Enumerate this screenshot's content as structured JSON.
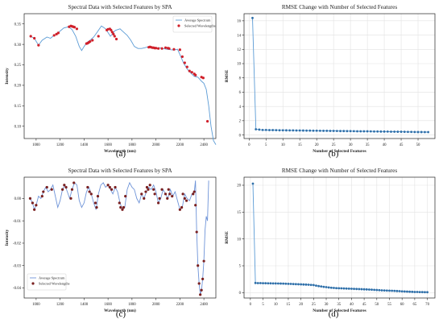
{
  "panels": [
    {
      "label": "(a)",
      "chart_data": {
        "type": "line",
        "title": "Spectral Data with Selected Features by SPA",
        "xlabel": "Wavelength (nm)",
        "ylabel": "Intensity",
        "xticks": [
          1000,
          1200,
          1400,
          1600,
          1800,
          2000,
          2200,
          2400
        ],
        "yticks": [
          0.1,
          0.15,
          0.2,
          0.25,
          0.3,
          0.35
        ],
        "xlim": [
          900,
          2500
        ],
        "ylim": [
          0.07,
          0.375
        ],
        "grid": false,
        "legend_position": "top-right",
        "series": [
          {
            "name": "Average Spectrum",
            "kind": "line",
            "x": [
              950,
              985,
              1020,
              1050,
              1090,
              1120,
              1150,
              1190,
              1230,
              1270,
              1300,
              1330,
              1360,
              1380,
              1400,
              1425,
              1450,
              1480,
              1510,
              1545,
              1580,
              1620,
              1660,
              1700,
              1730,
              1760,
              1790,
              1820,
              1850,
              1880,
              1910,
              1940,
              1970,
              2000,
              2030,
              2060,
              2090,
              2120,
              2150,
              2180,
              2200,
              2230,
              2260,
              2290,
              2320,
              2350,
              2380,
              2400,
              2420,
              2440,
              2460,
              2480,
              2500
            ],
            "y": [
              0.32,
              0.315,
              0.298,
              0.31,
              0.318,
              0.315,
              0.322,
              0.33,
              0.34,
              0.343,
              0.336,
              0.32,
              0.295,
              0.285,
              0.295,
              0.305,
              0.31,
              0.318,
              0.33,
              0.345,
              0.338,
              0.32,
              0.334,
              0.338,
              0.33,
              0.322,
              0.31,
              0.295,
              0.29,
              0.29,
              0.292,
              0.295,
              0.29,
              0.29,
              0.292,
              0.29,
              0.288,
              0.287,
              0.286,
              0.288,
              0.275,
              0.255,
              0.24,
              0.23,
              0.222,
              0.22,
              0.21,
              0.205,
              0.19,
              0.15,
              0.1,
              0.065,
              0.055
            ]
          },
          {
            "name": "Selected Wavelengths",
            "kind": "scatter",
            "x": [
              955,
              985,
              1020,
              1150,
              1170,
              1185,
              1275,
              1290,
              1300,
              1310,
              1320,
              1340,
              1420,
              1430,
              1440,
              1450,
              1470,
              1520,
              1590,
              1600,
              1615,
              1625,
              1635,
              1645,
              1655,
              1670,
              1940,
              1950,
              1960,
              1970,
              1980,
              1990,
              2000,
              2020,
              2050,
              2080,
              2100,
              2110,
              2150,
              2200,
              2220,
              2240,
              2260,
              2280,
              2300,
              2320,
              2330,
              2380,
              2395,
              2430
            ],
            "y": [
              0.32,
              0.315,
              0.298,
              0.322,
              0.325,
              0.328,
              0.343,
              0.345,
              0.344,
              0.343,
              0.342,
              0.338,
              0.302,
              0.303,
              0.305,
              0.307,
              0.31,
              0.32,
              0.335,
              0.337,
              0.338,
              0.335,
              0.33,
              0.325,
              0.32,
              0.313,
              0.293,
              0.294,
              0.293,
              0.292,
              0.292,
              0.291,
              0.291,
              0.29,
              0.29,
              0.292,
              0.291,
              0.29,
              0.288,
              0.287,
              0.27,
              0.255,
              0.245,
              0.235,
              0.232,
              0.228,
              0.225,
              0.22,
              0.218,
              0.112
            ]
          }
        ]
      }
    },
    {
      "label": "(b)",
      "chart_data": {
        "type": "line",
        "title": "RMSE Change with Number of Selected Features",
        "xlabel": "Number of Selected Features",
        "ylabel": "RMSE",
        "xticks": [
          0,
          5,
          10,
          15,
          20,
          25,
          30,
          35,
          40,
          45,
          50
        ],
        "yticks": [
          0,
          2,
          4,
          6,
          8,
          10,
          12,
          14,
          16
        ],
        "xlim": [
          -1.5,
          55
        ],
        "ylim": [
          -0.5,
          17
        ],
        "grid": true,
        "series": [
          {
            "name": "",
            "kind": "line-markers",
            "x": [
              1,
              2,
              3,
              4,
              5,
              6,
              7,
              8,
              9,
              10,
              11,
              12,
              13,
              14,
              15,
              16,
              17,
              18,
              19,
              20,
              21,
              22,
              23,
              24,
              25,
              26,
              27,
              28,
              29,
              30,
              31,
              32,
              33,
              34,
              35,
              36,
              37,
              38,
              39,
              40,
              41,
              42,
              43,
              44,
              45,
              46,
              47,
              48,
              49,
              50,
              51,
              52,
              53
            ],
            "y": [
              16.4,
              0.8,
              0.75,
              0.7,
              0.7,
              0.68,
              0.68,
              0.67,
              0.66,
              0.66,
              0.65,
              0.64,
              0.64,
              0.63,
              0.63,
              0.62,
              0.61,
              0.61,
              0.6,
              0.6,
              0.59,
              0.58,
              0.58,
              0.57,
              0.57,
              0.56,
              0.55,
              0.55,
              0.54,
              0.54,
              0.53,
              0.52,
              0.52,
              0.51,
              0.51,
              0.5,
              0.49,
              0.49,
              0.48,
              0.48,
              0.47,
              0.46,
              0.46,
              0.45,
              0.45,
              0.44,
              0.43,
              0.43,
              0.42,
              0.41,
              0.41,
              0.4,
              0.4
            ]
          }
        ]
      }
    },
    {
      "label": "(c)",
      "chart_data": {
        "type": "line",
        "title": "Spectral Data with Selected Features by SPA",
        "xlabel": "Wavelength (nm)",
        "ylabel": "Intensity",
        "xticks": [
          1000,
          1200,
          1400,
          1600,
          1800,
          2000,
          2200,
          2400
        ],
        "yticks": [
          0.0,
          -0.01,
          -0.02,
          -0.03,
          -0.04
        ],
        "xlim": [
          900,
          2500
        ],
        "ylim": [
          -0.0445,
          0.0095
        ],
        "grid": false,
        "legend_position": "bottom-left",
        "series": [
          {
            "name": "Average Spectrum",
            "kind": "line",
            "x": [
              950,
              970,
              985,
              1000,
              1020,
              1040,
              1060,
              1080,
              1100,
              1120,
              1140,
              1160,
              1180,
              1200,
              1220,
              1240,
              1260,
              1280,
              1300,
              1320,
              1340,
              1360,
              1380,
              1400,
              1420,
              1440,
              1460,
              1480,
              1500,
              1520,
              1540,
              1560,
              1580,
              1600,
              1620,
              1640,
              1660,
              1680,
              1700,
              1720,
              1740,
              1760,
              1780,
              1800,
              1820,
              1840,
              1860,
              1880,
              1900,
              1920,
              1940,
              1960,
              1980,
              2000,
              2020,
              2040,
              2060,
              2080,
              2100,
              2120,
              2140,
              2160,
              2180,
              2200,
              2220,
              2240,
              2260,
              2280,
              2300,
              2320,
              2330,
              2340,
              2350,
              2360,
              2370,
              2380,
              2390,
              2400,
              2410,
              2420,
              2430,
              2440
            ],
            "y": [
              0.0,
              -0.002,
              -0.005,
              -0.003,
              0.001,
              0.0,
              0.003,
              0.005,
              0.003,
              0.004,
              0.006,
              0.001,
              -0.004,
              -0.001,
              0.004,
              0.006,
              0.003,
              0.0,
              0.004,
              0.007,
              0.006,
              -0.001,
              -0.004,
              -0.002,
              0.003,
              0.005,
              0.002,
              -0.002,
              -0.005,
              0.002,
              0.006,
              0.007,
              0.005,
              0.006,
              0.004,
              0.002,
              0.005,
              0.003,
              -0.002,
              -0.005,
              -0.004,
              0.004,
              0.007,
              0.005,
              0.004,
              0.0,
              -0.002,
              0.002,
              0.0,
              0.003,
              0.005,
              0.004,
              0.006,
              0.003,
              -0.002,
              0.0,
              0.004,
              0.002,
              0.0,
              0.004,
              0.001,
              0.003,
              -0.001,
              -0.005,
              -0.004,
              0.002,
              0.0,
              -0.001,
              0.002,
              0.003,
              0.008,
              -0.015,
              -0.03,
              -0.038,
              -0.043,
              -0.041,
              -0.036,
              -0.028,
              -0.014,
              -0.008,
              -0.01,
              0.008
            ]
          },
          {
            "name": "Selected Wavelengths",
            "kind": "scatter",
            "x": [
              950,
              970,
              985,
              1000,
              1050,
              1060,
              1090,
              1130,
              1220,
              1235,
              1250,
              1290,
              1300,
              1315,
              1430,
              1445,
              1460,
              1495,
              1505,
              1515,
              1600,
              1615,
              1630,
              1660,
              1695,
              1705,
              1720,
              1730,
              1745,
              1880,
              1900,
              1915,
              1925,
              1935,
              1950,
              1980,
              1990,
              2020,
              2030,
              2050,
              2080,
              2095,
              2105,
              2115,
              2135,
              2200,
              2215,
              2225,
              2240,
              2255,
              2310,
              2320,
              2330,
              2340,
              2350,
              2360,
              2370,
              2380,
              2390,
              2400
            ],
            "y": [
              0.0,
              -0.002,
              -0.005,
              -0.003,
              0.001,
              0.003,
              0.005,
              0.004,
              0.004,
              0.006,
              0.005,
              0.0,
              0.004,
              0.007,
              0.005,
              0.003,
              0.002,
              -0.002,
              -0.004,
              0.001,
              0.006,
              0.005,
              0.004,
              0.005,
              -0.002,
              -0.004,
              -0.005,
              -0.004,
              0.001,
              0.002,
              0.0,
              0.003,
              0.005,
              0.004,
              0.006,
              0.004,
              0.002,
              -0.002,
              0.0,
              0.004,
              0.002,
              0.0,
              0.004,
              0.002,
              0.001,
              -0.005,
              -0.004,
              0.002,
              0.0,
              -0.001,
              0.002,
              0.003,
              -0.003,
              -0.015,
              -0.03,
              -0.038,
              -0.043,
              -0.041,
              -0.036,
              -0.028
            ]
          }
        ]
      }
    },
    {
      "label": "(d)",
      "chart_data": {
        "type": "line",
        "title": "RMSE Change with Number of Selected Features",
        "xlabel": "Number of Selected Features",
        "ylabel": "RMSE",
        "xticks": [
          0,
          5,
          10,
          15,
          20,
          25,
          30,
          35,
          40,
          45,
          50,
          55,
          60,
          65,
          70
        ],
        "yticks": [
          0,
          5,
          10,
          15,
          20
        ],
        "xlim": [
          -2.5,
          73
        ],
        "ylim": [
          -1,
          21.5
        ],
        "grid": true,
        "series": [
          {
            "name": "",
            "kind": "line-markers",
            "x": [
              1,
              2,
              3,
              4,
              5,
              6,
              7,
              8,
              9,
              10,
              11,
              12,
              13,
              14,
              15,
              16,
              17,
              18,
              19,
              20,
              21,
              22,
              23,
              24,
              25,
              26,
              27,
              28,
              29,
              30,
              31,
              32,
              33,
              34,
              35,
              36,
              37,
              38,
              39,
              40,
              41,
              42,
              43,
              44,
              45,
              46,
              47,
              48,
              49,
              50,
              51,
              52,
              53,
              54,
              55,
              56,
              57,
              58,
              59,
              60,
              61,
              62,
              63,
              64,
              65,
              66,
              67,
              68,
              69,
              70
            ],
            "y": [
              20.3,
              1.8,
              1.78,
              1.77,
              1.76,
              1.75,
              1.74,
              1.73,
              1.72,
              1.71,
              1.7,
              1.69,
              1.68,
              1.66,
              1.64,
              1.62,
              1.6,
              1.58,
              1.56,
              1.54,
              1.52,
              1.5,
              1.47,
              1.44,
              1.41,
              1.3,
              1.22,
              1.15,
              1.08,
              1.02,
              0.96,
              0.91,
              0.87,
              0.84,
              0.82,
              0.8,
              0.78,
              0.76,
              0.74,
              0.72,
              0.7,
              0.68,
              0.66,
              0.64,
              0.62,
              0.6,
              0.58,
              0.55,
              0.52,
              0.49,
              0.46,
              0.43,
              0.41,
              0.39,
              0.37,
              0.35,
              0.33,
              0.3,
              0.27,
              0.24,
              0.21,
              0.19,
              0.17,
              0.15,
              0.13,
              0.12,
              0.11,
              0.1,
              0.09,
              0.08
            ]
          }
        ]
      }
    }
  ]
}
